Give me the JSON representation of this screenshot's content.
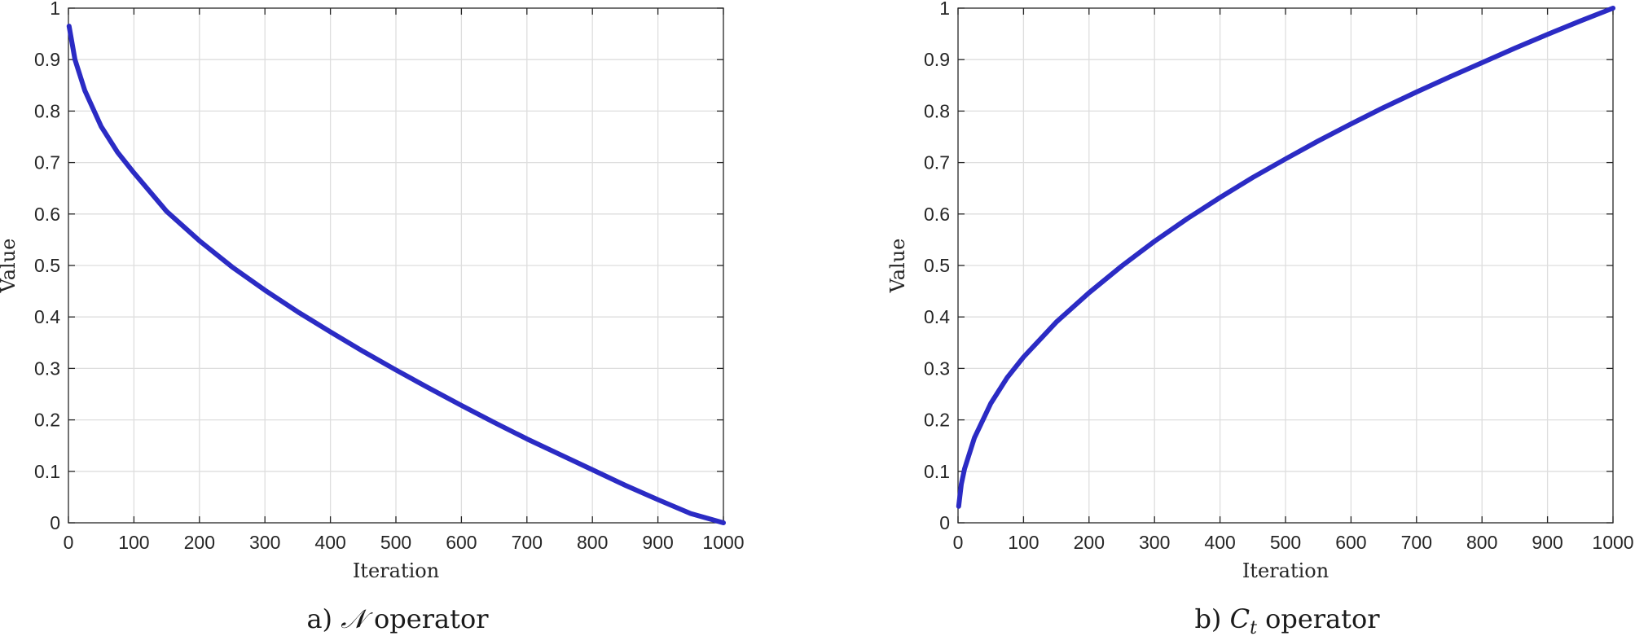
{
  "chart_data": [
    {
      "type": "line",
      "caption_prefix": "a)",
      "caption_symbol": "𝒩",
      "caption_suffix": "operator",
      "xlabel": "Iteration",
      "ylabel": "Value",
      "xlim": [
        0,
        1000
      ],
      "ylim": [
        0,
        1
      ],
      "xticks": [
        "0",
        "100",
        "200",
        "300",
        "400",
        "500",
        "600",
        "700",
        "800",
        "900",
        "1000"
      ],
      "yticks": [
        "0",
        "0.1",
        "0.2",
        "0.3",
        "0.4",
        "0.5",
        "0.6",
        "0.7",
        "0.8",
        "0.9",
        "1"
      ],
      "grid": true,
      "series": [
        {
          "color": "#2b2bc4",
          "x": [
            1,
            10,
            25,
            50,
            75,
            100,
            150,
            200,
            250,
            300,
            350,
            400,
            450,
            500,
            550,
            600,
            650,
            700,
            750,
            800,
            850,
            900,
            950,
            1000
          ],
          "y": [
            0.965,
            0.9,
            0.84,
            0.77,
            0.72,
            0.68,
            0.605,
            0.548,
            0.497,
            0.452,
            0.41,
            0.371,
            0.333,
            0.297,
            0.262,
            0.228,
            0.195,
            0.163,
            0.133,
            0.103,
            0.073,
            0.045,
            0.018,
            0.0
          ]
        }
      ]
    },
    {
      "type": "line",
      "caption_prefix": "b)",
      "caption_symbol": "C",
      "caption_sub": "t",
      "caption_suffix": "operator",
      "xlabel": "Iteration",
      "ylabel": "Value",
      "xlim": [
        0,
        1000
      ],
      "ylim": [
        0,
        1
      ],
      "xticks": [
        "0",
        "100",
        "200",
        "300",
        "400",
        "500",
        "600",
        "700",
        "800",
        "900",
        "1000"
      ],
      "yticks": [
        "0",
        "0.1",
        "0.2",
        "0.3",
        "0.4",
        "0.5",
        "0.6",
        "0.7",
        "0.8",
        "0.9",
        "1"
      ],
      "grid": true,
      "series": [
        {
          "color": "#2b2bc4",
          "x": [
            1,
            5,
            10,
            25,
            50,
            75,
            100,
            150,
            200,
            250,
            300,
            350,
            400,
            450,
            500,
            550,
            600,
            650,
            700,
            750,
            800,
            850,
            900,
            950,
            1000
          ],
          "y": [
            0.032,
            0.075,
            0.105,
            0.165,
            0.232,
            0.282,
            0.322,
            0.39,
            0.447,
            0.499,
            0.547,
            0.591,
            0.632,
            0.671,
            0.707,
            0.742,
            0.775,
            0.807,
            0.837,
            0.866,
            0.894,
            0.922,
            0.949,
            0.975,
            1.0
          ]
        }
      ]
    }
  ]
}
